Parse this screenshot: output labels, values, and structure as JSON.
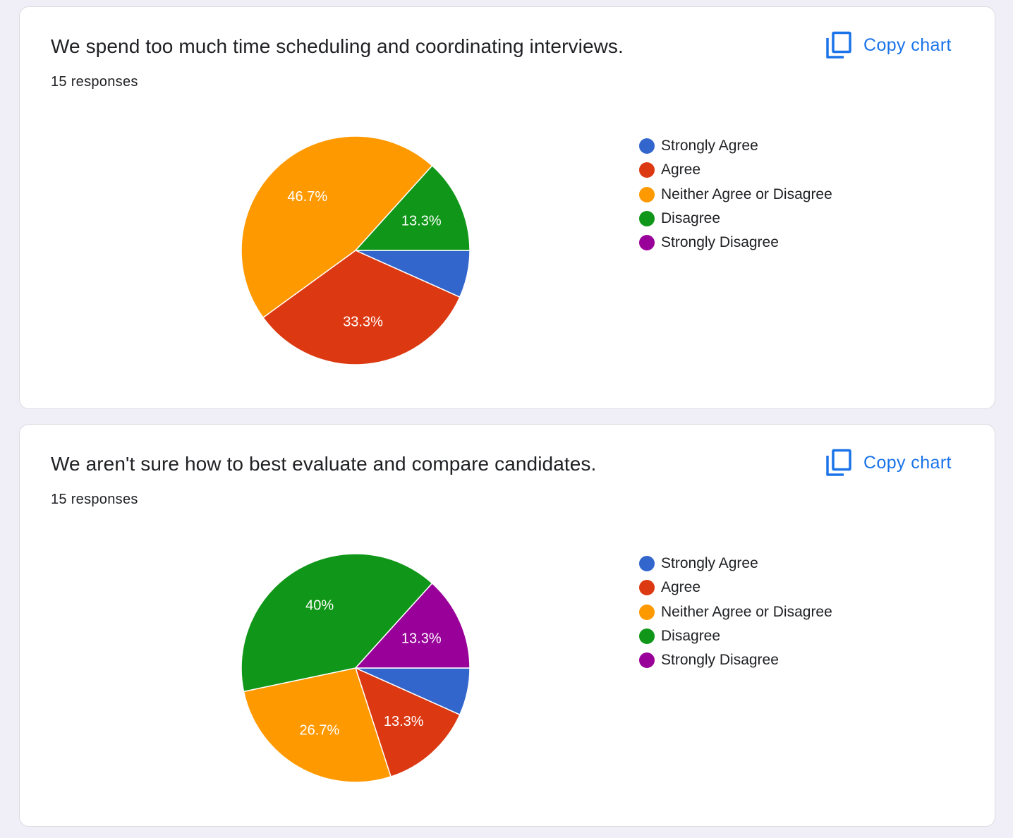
{
  "cards": [
    {
      "title": "We spend too much time scheduling and coordinating interviews.",
      "responses": "15 responses",
      "copy_label": "Copy chart"
    },
    {
      "title": "We aren't sure how to best evaluate and compare candidates.",
      "responses": "15 responses",
      "copy_label": "Copy chart"
    }
  ],
  "icons": {
    "copy": "copy-icon"
  },
  "legend": [
    {
      "label": "Strongly Agree",
      "color": "#3366cc"
    },
    {
      "label": "Agree",
      "color": "#dc3912"
    },
    {
      "label": "Neither Agree or Disagree",
      "color": "#ff9900"
    },
    {
      "label": "Disagree",
      "color": "#109618"
    },
    {
      "label": "Strongly Disagree",
      "color": "#990099"
    }
  ],
  "chart_data": [
    {
      "type": "pie",
      "title": "We spend too much time scheduling and coordinating interviews.",
      "categories": [
        "Strongly Agree",
        "Agree",
        "Neither Agree or Disagree",
        "Disagree",
        "Strongly Disagree"
      ],
      "values": [
        6.7,
        33.3,
        46.7,
        13.3,
        0
      ],
      "labels": [
        "",
        "33.3%",
        "46.7%",
        "13.3%",
        ""
      ],
      "colors": [
        "#3366cc",
        "#dc3912",
        "#ff9900",
        "#109618",
        "#990099"
      ],
      "legend_position": "right"
    },
    {
      "type": "pie",
      "title": "We aren't sure how to best evaluate and compare candidates.",
      "categories": [
        "Strongly Agree",
        "Agree",
        "Neither Agree or Disagree",
        "Disagree",
        "Strongly Disagree"
      ],
      "values": [
        6.7,
        13.3,
        26.7,
        40,
        13.3
      ],
      "labels": [
        "",
        "13.3%",
        "26.7%",
        "40%",
        "13.3%"
      ],
      "colors": [
        "#3366cc",
        "#dc3912",
        "#ff9900",
        "#109618",
        "#990099"
      ],
      "legend_position": "right"
    }
  ]
}
